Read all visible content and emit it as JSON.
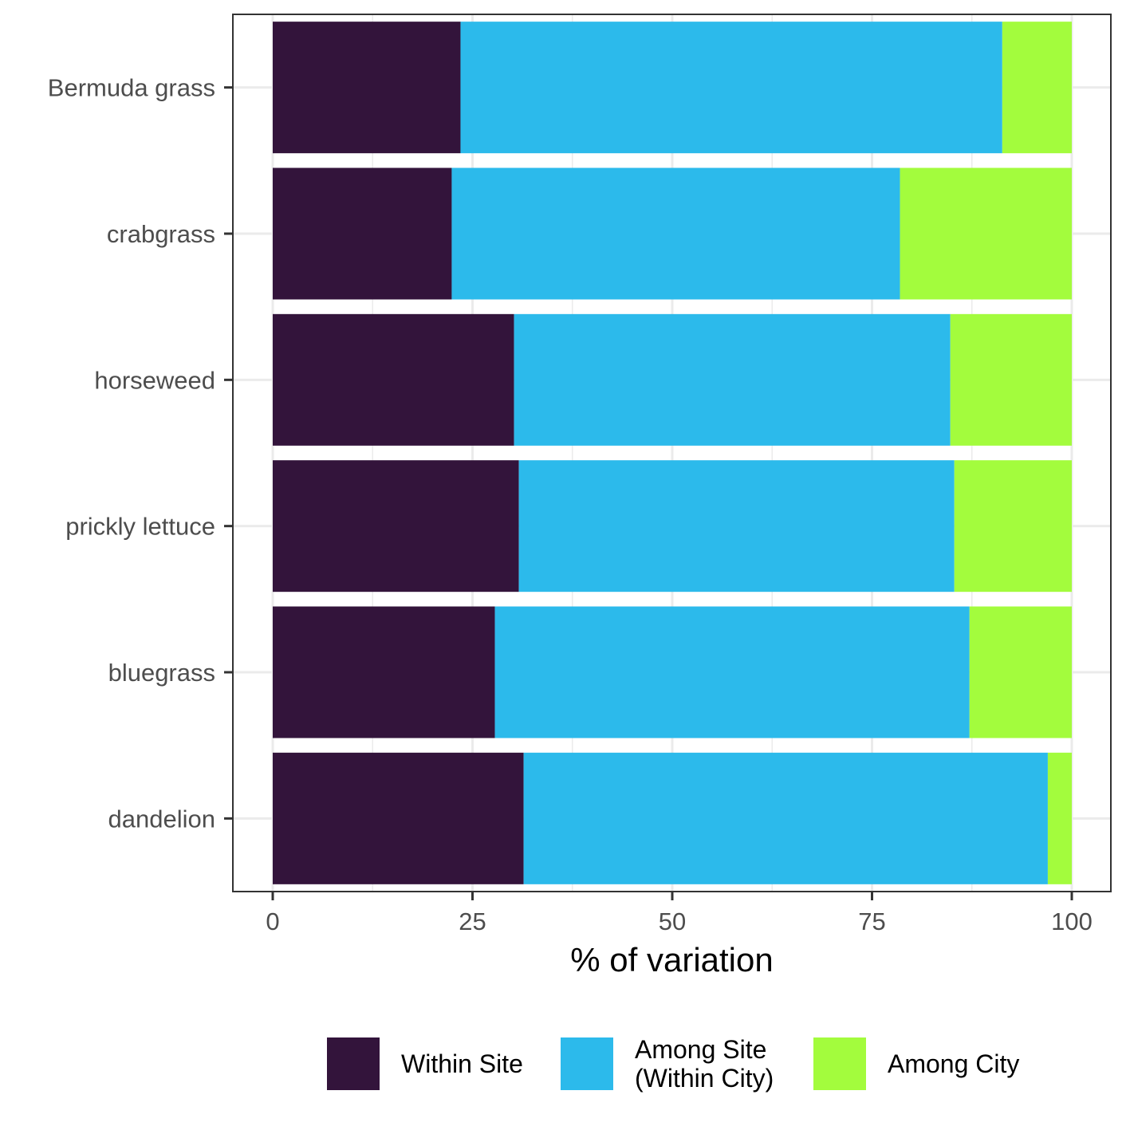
{
  "chart_data": {
    "type": "bar",
    "orientation": "horizontal",
    "stacked": true,
    "categories": [
      "Bermuda grass",
      "crabgrass",
      "horseweed",
      "prickly lettuce",
      "bluegrass",
      "dandelion"
    ],
    "series": [
      {
        "name": "Within Site",
        "color": "#33143b",
        "values": [
          23.5,
          22.4,
          30.2,
          30.8,
          27.8,
          31.4
        ]
      },
      {
        "name": "Among Site\n(Within City)",
        "color": "#2cbaeb",
        "values": [
          67.8,
          56.1,
          54.6,
          54.5,
          59.4,
          65.6
        ]
      },
      {
        "name": "Among City",
        "color": "#a3fc3d",
        "values": [
          8.7,
          21.5,
          15.2,
          14.7,
          12.8,
          3.0
        ]
      }
    ],
    "xlabel": "% of variation",
    "ylabel": "",
    "xlim": [
      0,
      100
    ],
    "xticks": [
      0,
      25,
      50,
      75,
      100
    ],
    "grid": true,
    "legend_position": "bottom",
    "theme": "bw"
  }
}
